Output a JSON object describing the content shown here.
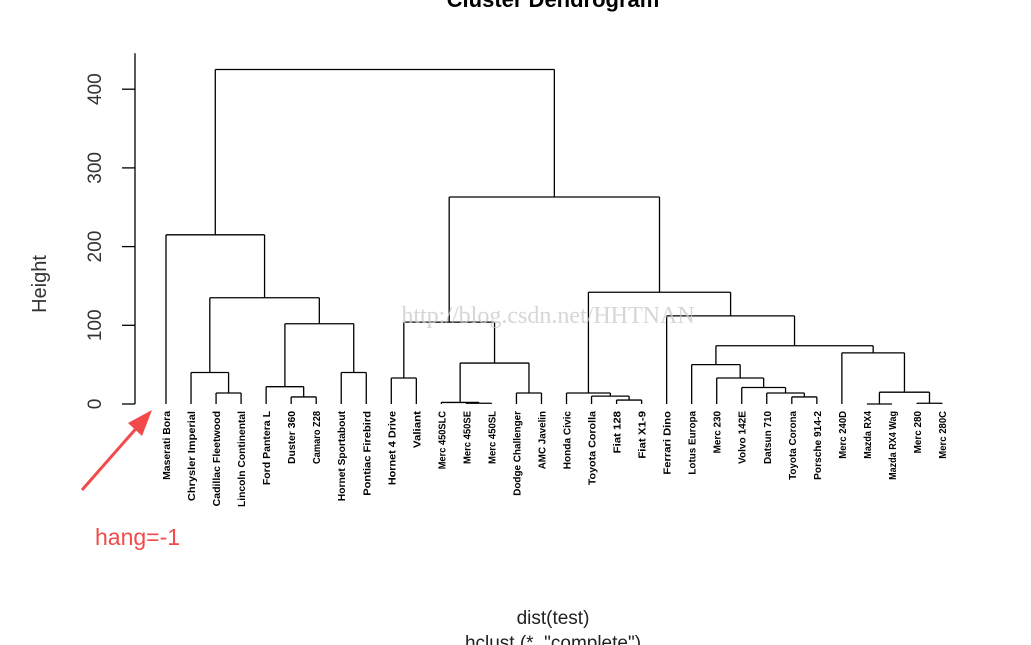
{
  "chart_data": {
    "type": "dendrogram",
    "title": "Cluster Dendrogram",
    "ylabel": "Height",
    "xlabel": "dist(test)",
    "subtitle": "hclust (*, \"complete\")",
    "ylim": [
      0,
      430
    ],
    "y_ticks": [
      0,
      100,
      200,
      300,
      400
    ],
    "y_tick_labels": [
      "0",
      "100",
      "200",
      "300",
      "400"
    ],
    "hang": -1,
    "leaves": [
      "Maserati Bora",
      "Chrysler Imperial",
      "Cadillac Fleetwood",
      "Lincoln Continental",
      "Ford Pantera L",
      "Duster 360",
      "Camaro Z28",
      "Hornet Sportabout",
      "Pontiac Firebird",
      "Hornet 4 Drive",
      "Valiant",
      "Merc 450SLC",
      "Merc 450SE",
      "Merc 450SL",
      "Dodge Challenger",
      "AMC Javelin",
      "Honda Civic",
      "Toyota Corolla",
      "Fiat 128",
      "Fiat X1-9",
      "Ferrari Dino",
      "Lotus Europa",
      "Merc 230",
      "Volvo 142E",
      "Datsun 710",
      "Toyota Corona",
      "Porsche 914-2",
      "Merc 240D",
      "Mazda RX4",
      "Mazda RX4 Wag",
      "Merc 280",
      "Merc 280C"
    ],
    "merges": [
      {
        "a": [
          "L",
          2
        ],
        "b": [
          "L",
          3
        ],
        "height": 14
      },
      {
        "a": [
          "L",
          1
        ],
        "b": [
          "C",
          0
        ],
        "height": 40
      },
      {
        "a": [
          "L",
          5
        ],
        "b": [
          "L",
          6
        ],
        "height": 9
      },
      {
        "a": [
          "L",
          4
        ],
        "b": [
          "C",
          2
        ],
        "height": 22
      },
      {
        "a": [
          "L",
          7
        ],
        "b": [
          "L",
          8
        ],
        "height": 40
      },
      {
        "a": [
          "C",
          3
        ],
        "b": [
          "C",
          4
        ],
        "height": 102
      },
      {
        "a": [
          "C",
          1
        ],
        "b": [
          "C",
          5
        ],
        "height": 135
      },
      {
        "a": [
          "L",
          0
        ],
        "b": [
          "C",
          6
        ],
        "height": 215
      },
      {
        "a": [
          "L",
          9
        ],
        "b": [
          "L",
          10
        ],
        "height": 33
      },
      {
        "a": [
          "L",
          12
        ],
        "b": [
          "L",
          13
        ],
        "height": 1
      },
      {
        "a": [
          "L",
          11
        ],
        "b": [
          "C",
          9
        ],
        "height": 2
      },
      {
        "a": [
          "L",
          14
        ],
        "b": [
          "L",
          15
        ],
        "height": 14
      },
      {
        "a": [
          "C",
          10
        ],
        "b": [
          "C",
          11
        ],
        "height": 52
      },
      {
        "a": [
          "C",
          8
        ],
        "b": [
          "C",
          12
        ],
        "height": 104
      },
      {
        "a": [
          "L",
          18
        ],
        "b": [
          "L",
          19
        ],
        "height": 5
      },
      {
        "a": [
          "L",
          17
        ],
        "b": [
          "C",
          14
        ],
        "height": 10
      },
      {
        "a": [
          "L",
          16
        ],
        "b": [
          "C",
          15
        ],
        "height": 14
      },
      {
        "a": [
          "L",
          25
        ],
        "b": [
          "L",
          26
        ],
        "height": 9
      },
      {
        "a": [
          "L",
          24
        ],
        "b": [
          "C",
          17
        ],
        "height": 14
      },
      {
        "a": [
          "L",
          23
        ],
        "b": [
          "C",
          18
        ],
        "height": 21
      },
      {
        "a": [
          "L",
          22
        ],
        "b": [
          "C",
          19
        ],
        "height": 33
      },
      {
        "a": [
          "L",
          21
        ],
        "b": [
          "C",
          20
        ],
        "height": 50
      },
      {
        "a": [
          "L",
          28
        ],
        "b": [
          "L",
          29
        ],
        "height": 0
      },
      {
        "a": [
          "L",
          30
        ],
        "b": [
          "L",
          31
        ],
        "height": 1
      },
      {
        "a": [
          "C",
          22
        ],
        "b": [
          "C",
          23
        ],
        "height": 15
      },
      {
        "a": [
          "L",
          27
        ],
        "b": [
          "C",
          24
        ],
        "height": 65
      },
      {
        "a": [
          "C",
          21
        ],
        "b": [
          "C",
          25
        ],
        "height": 74
      },
      {
        "a": [
          "L",
          20
        ],
        "b": [
          "C",
          26
        ],
        "height": 112
      },
      {
        "a": [
          "C",
          16
        ],
        "b": [
          "C",
          27
        ],
        "height": 142
      },
      {
        "a": [
          "C",
          13
        ],
        "b": [
          "C",
          28
        ],
        "height": 263
      },
      {
        "a": [
          "C",
          7
        ],
        "b": [
          "C",
          29
        ],
        "height": 425
      }
    ]
  },
  "watermark_text": "http://blog.csdn.net/HHTNAN",
  "annotation": {
    "text": "hang=-1",
    "color": "#f24a4a"
  }
}
